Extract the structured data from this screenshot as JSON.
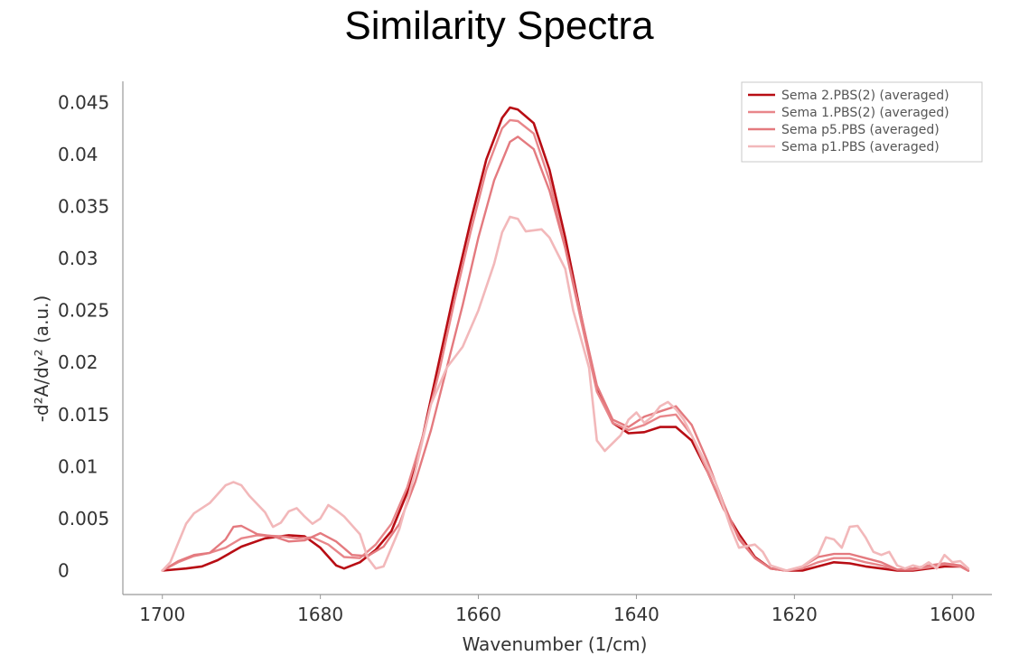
{
  "chart_data": {
    "type": "line",
    "title": "Similarity Spectra",
    "xlabel": "Wavenumber (1/cm)",
    "ylabel": "-d²A/dv² (a.u.)",
    "xlim": [
      1705,
      1595
    ],
    "ylim": [
      -0.0023,
      0.0465
    ],
    "x_reversed": true,
    "x_ticks": [
      1700,
      1680,
      1660,
      1640,
      1620,
      1600
    ],
    "x_tick_labels": [
      "1700",
      "1680",
      "1660",
      "1640",
      "1620",
      "1600"
    ],
    "y_ticks": [
      0,
      0.005,
      0.01,
      0.015,
      0.02,
      0.025,
      0.03,
      0.035,
      0.04,
      0.045
    ],
    "y_tick_labels": [
      "0",
      "0.005",
      "0.01",
      "0.015",
      "0.02",
      "0.025",
      "0.03",
      "0.035",
      "0.04",
      "0.045"
    ],
    "grid": false,
    "legend_position": "top-right",
    "series": [
      {
        "name": "Sema 2.PBS(2) (averaged)",
        "color": "#b80d14",
        "width": 2.6,
        "points": [
          [
            1700,
            0
          ],
          [
            1697,
            0.0002
          ],
          [
            1695,
            0.0004
          ],
          [
            1693,
            0.001
          ],
          [
            1690,
            0.0023
          ],
          [
            1687,
            0.0031
          ],
          [
            1684,
            0.0034
          ],
          [
            1682,
            0.0033
          ],
          [
            1680,
            0.0022
          ],
          [
            1678,
            0.0005
          ],
          [
            1677,
            0.0002
          ],
          [
            1675,
            0.0008
          ],
          [
            1673,
            0.002
          ],
          [
            1671,
            0.0038
          ],
          [
            1669,
            0.0075
          ],
          [
            1667,
            0.013
          ],
          [
            1665,
            0.02
          ],
          [
            1663,
            0.027
          ],
          [
            1661,
            0.0335
          ],
          [
            1659,
            0.0395
          ],
          [
            1657,
            0.0435
          ],
          [
            1656,
            0.0445
          ],
          [
            1655,
            0.0443
          ],
          [
            1653,
            0.043
          ],
          [
            1651,
            0.0385
          ],
          [
            1649,
            0.032
          ],
          [
            1647,
            0.0245
          ],
          [
            1645,
            0.0175
          ],
          [
            1643,
            0.0142
          ],
          [
            1641,
            0.0132
          ],
          [
            1639,
            0.0133
          ],
          [
            1637,
            0.0138
          ],
          [
            1635,
            0.0138
          ],
          [
            1633,
            0.0125
          ],
          [
            1631,
            0.0095
          ],
          [
            1629,
            0.006
          ],
          [
            1627,
            0.0035
          ],
          [
            1625,
            0.0013
          ],
          [
            1623,
            0.0002
          ],
          [
            1621,
            0
          ],
          [
            1619,
            0
          ],
          [
            1617,
            0.0004
          ],
          [
            1615,
            0.0008
          ],
          [
            1613,
            0.0007
          ],
          [
            1611,
            0.0004
          ],
          [
            1609,
            0.0002
          ],
          [
            1607,
            0
          ],
          [
            1605,
            0
          ],
          [
            1603,
            0.0002
          ],
          [
            1601,
            0.0004
          ],
          [
            1599,
            0.0004
          ],
          [
            1598,
            0
          ]
        ]
      },
      {
        "name": "Sema 1.PBS(2) (averaged)",
        "color": "#e8868a",
        "width": 2.4,
        "points": [
          [
            1700,
            0
          ],
          [
            1698,
            0.0008
          ],
          [
            1696,
            0.0014
          ],
          [
            1694,
            0.0017
          ],
          [
            1692,
            0.0022
          ],
          [
            1690,
            0.0031
          ],
          [
            1688,
            0.0034
          ],
          [
            1685,
            0.0033
          ],
          [
            1683,
            0.0031
          ],
          [
            1681,
            0.0032
          ],
          [
            1679,
            0.0025
          ],
          [
            1677,
            0.0013
          ],
          [
            1675,
            0.0012
          ],
          [
            1673,
            0.0025
          ],
          [
            1671,
            0.0045
          ],
          [
            1669,
            0.008
          ],
          [
            1667,
            0.013
          ],
          [
            1665,
            0.019
          ],
          [
            1663,
            0.026
          ],
          [
            1661,
            0.0325
          ],
          [
            1659,
            0.0385
          ],
          [
            1657,
            0.0425
          ],
          [
            1656,
            0.0433
          ],
          [
            1655,
            0.0432
          ],
          [
            1653,
            0.042
          ],
          [
            1651,
            0.0375
          ],
          [
            1649,
            0.031
          ],
          [
            1647,
            0.024
          ],
          [
            1645,
            0.0172
          ],
          [
            1643,
            0.0142
          ],
          [
            1641,
            0.0135
          ],
          [
            1639,
            0.014
          ],
          [
            1637,
            0.0148
          ],
          [
            1635,
            0.015
          ],
          [
            1633,
            0.013
          ],
          [
            1631,
            0.0095
          ],
          [
            1629,
            0.006
          ],
          [
            1627,
            0.0032
          ],
          [
            1625,
            0.0012
          ],
          [
            1623,
            0.0002
          ],
          [
            1621,
            0
          ],
          [
            1619,
            0.0002
          ],
          [
            1617,
            0.0008
          ],
          [
            1615,
            0.0012
          ],
          [
            1613,
            0.0012
          ],
          [
            1611,
            0.0008
          ],
          [
            1609,
            0.0005
          ],
          [
            1607,
            0.0001
          ],
          [
            1605,
            0.0001
          ],
          [
            1603,
            0.0003
          ],
          [
            1601,
            0.0006
          ],
          [
            1599,
            0.0004
          ],
          [
            1598,
            0
          ]
        ]
      },
      {
        "name": "Sema p5.PBS (averaged)",
        "color": "#e47a7f",
        "width": 2.4,
        "points": [
          [
            1700,
            0
          ],
          [
            1698,
            0.0009
          ],
          [
            1696,
            0.0015
          ],
          [
            1694,
            0.0017
          ],
          [
            1692,
            0.003
          ],
          [
            1691,
            0.0042
          ],
          [
            1690,
            0.0043
          ],
          [
            1688,
            0.0035
          ],
          [
            1686,
            0.0033
          ],
          [
            1684,
            0.0028
          ],
          [
            1682,
            0.0029
          ],
          [
            1680,
            0.0036
          ],
          [
            1678,
            0.0028
          ],
          [
            1676,
            0.0015
          ],
          [
            1674,
            0.0014
          ],
          [
            1672,
            0.0023
          ],
          [
            1670,
            0.0045
          ],
          [
            1668,
            0.0085
          ],
          [
            1666,
            0.0135
          ],
          [
            1664,
            0.0195
          ],
          [
            1662,
            0.0255
          ],
          [
            1660,
            0.032
          ],
          [
            1658,
            0.0375
          ],
          [
            1656,
            0.0412
          ],
          [
            1655,
            0.0417
          ],
          [
            1653,
            0.0405
          ],
          [
            1651,
            0.0365
          ],
          [
            1649,
            0.031
          ],
          [
            1647,
            0.0245
          ],
          [
            1645,
            0.0178
          ],
          [
            1643,
            0.0145
          ],
          [
            1641,
            0.0138
          ],
          [
            1639,
            0.0148
          ],
          [
            1637,
            0.0153
          ],
          [
            1635,
            0.0158
          ],
          [
            1633,
            0.014
          ],
          [
            1631,
            0.0105
          ],
          [
            1629,
            0.0065
          ],
          [
            1627,
            0.003
          ],
          [
            1625,
            0.0012
          ],
          [
            1623,
            0.0002
          ],
          [
            1621,
            0
          ],
          [
            1619,
            0.0004
          ],
          [
            1617,
            0.0013
          ],
          [
            1615,
            0.0016
          ],
          [
            1613,
            0.0016
          ],
          [
            1611,
            0.0012
          ],
          [
            1609,
            0.0008
          ],
          [
            1607,
            0.0001
          ],
          [
            1605,
            0.0002
          ],
          [
            1603,
            0.0005
          ],
          [
            1601,
            0.0007
          ],
          [
            1599,
            0.0005
          ],
          [
            1598,
            0
          ]
        ]
      },
      {
        "name": "Sema p1.PBS (averaged)",
        "color": "#f2b8ba",
        "width": 2.6,
        "points": [
          [
            1700,
            0
          ],
          [
            1699,
            0.0008
          ],
          [
            1697,
            0.0045
          ],
          [
            1696,
            0.0055
          ],
          [
            1694,
            0.0065
          ],
          [
            1692,
            0.0082
          ],
          [
            1691,
            0.0085
          ],
          [
            1690,
            0.0082
          ],
          [
            1689,
            0.0072
          ],
          [
            1687,
            0.0056
          ],
          [
            1686,
            0.0042
          ],
          [
            1685,
            0.0046
          ],
          [
            1684,
            0.0057
          ],
          [
            1683,
            0.006
          ],
          [
            1682,
            0.0052
          ],
          [
            1681,
            0.0045
          ],
          [
            1680,
            0.005
          ],
          [
            1679,
            0.0063
          ],
          [
            1678,
            0.0058
          ],
          [
            1677,
            0.0052
          ],
          [
            1675,
            0.0035
          ],
          [
            1674,
            0.0012
          ],
          [
            1673,
            0.0002
          ],
          [
            1672,
            0.0004
          ],
          [
            1670,
            0.004
          ],
          [
            1668,
            0.0095
          ],
          [
            1666,
            0.016
          ],
          [
            1664,
            0.0195
          ],
          [
            1662,
            0.0215
          ],
          [
            1660,
            0.025
          ],
          [
            1658,
            0.0295
          ],
          [
            1657,
            0.0325
          ],
          [
            1656,
            0.034
          ],
          [
            1655,
            0.0338
          ],
          [
            1654,
            0.0326
          ],
          [
            1652,
            0.0328
          ],
          [
            1651,
            0.032
          ],
          [
            1649,
            0.029
          ],
          [
            1648,
            0.025
          ],
          [
            1646,
            0.0195
          ],
          [
            1645,
            0.0125
          ],
          [
            1644,
            0.0115
          ],
          [
            1642,
            0.013
          ],
          [
            1641,
            0.0145
          ],
          [
            1640,
            0.0152
          ],
          [
            1639,
            0.0142
          ],
          [
            1638,
            0.0148
          ],
          [
            1637,
            0.0158
          ],
          [
            1636,
            0.0162
          ],
          [
            1635,
            0.0155
          ],
          [
            1634,
            0.0145
          ],
          [
            1632,
            0.0115
          ],
          [
            1630,
            0.0085
          ],
          [
            1628,
            0.004
          ],
          [
            1627,
            0.0022
          ],
          [
            1625,
            0.0025
          ],
          [
            1624,
            0.0018
          ],
          [
            1623,
            0.0005
          ],
          [
            1621,
            0
          ],
          [
            1619,
            0.0004
          ],
          [
            1617,
            0.0015
          ],
          [
            1616,
            0.0032
          ],
          [
            1615,
            0.003
          ],
          [
            1614,
            0.0022
          ],
          [
            1613,
            0.0042
          ],
          [
            1612,
            0.0043
          ],
          [
            1611,
            0.0032
          ],
          [
            1610,
            0.0018
          ],
          [
            1609,
            0.0015
          ],
          [
            1608,
            0.0018
          ],
          [
            1607,
            0.0005
          ],
          [
            1606,
            0.0002
          ],
          [
            1605,
            0.0005
          ],
          [
            1604,
            0.0003
          ],
          [
            1603,
            0.0008
          ],
          [
            1602,
            0.0002
          ],
          [
            1601,
            0.0015
          ],
          [
            1600,
            0.0008
          ],
          [
            1599,
            0.0009
          ],
          [
            1598,
            0.0002
          ]
        ]
      }
    ]
  }
}
